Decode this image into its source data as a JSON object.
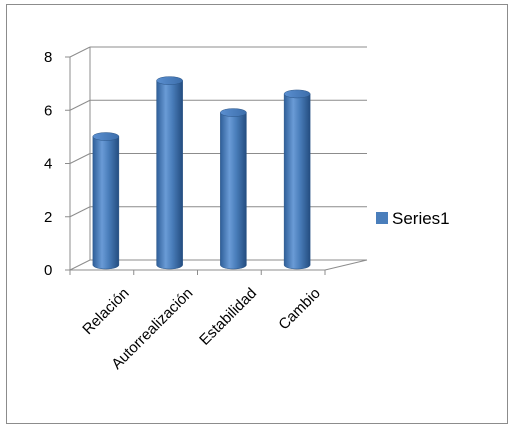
{
  "chart_data": {
    "type": "bar",
    "title": "",
    "xlabel": "",
    "ylabel": "",
    "categories": [
      "Relación",
      "Autorrealización",
      "Estabilidad",
      "Cambio"
    ],
    "series": [
      {
        "name": "Series1",
        "values": [
          4.9,
          7.0,
          5.8,
          6.5
        ],
        "color": "#4a7ebb"
      }
    ],
    "ylim": [
      0,
      8
    ],
    "yticks": [
      "0",
      "2",
      "4",
      "6",
      "8"
    ],
    "grid": true,
    "legend_position": "right",
    "style": "3d-cylinder"
  }
}
